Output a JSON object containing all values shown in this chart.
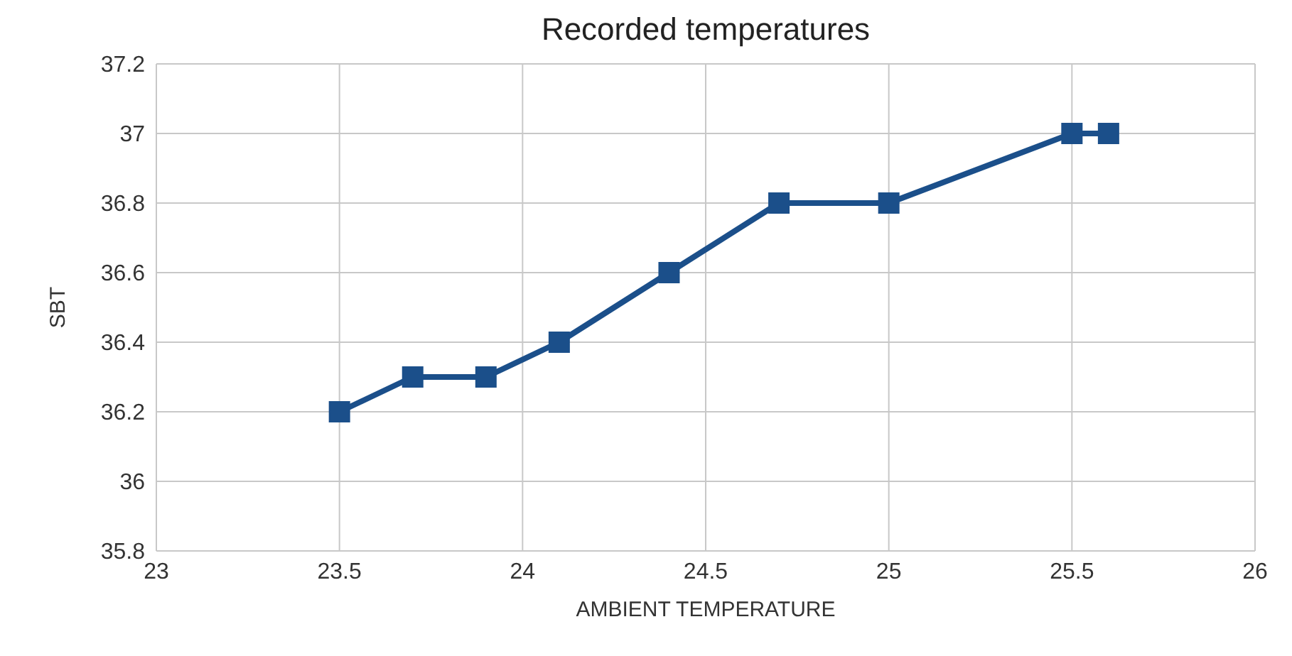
{
  "chart_data": {
    "type": "line",
    "title": "Recorded temperatures",
    "xlabel": "AMBIENT TEMPERATURE",
    "ylabel": "SBT",
    "x": [
      23.5,
      23.7,
      23.9,
      24.1,
      24.4,
      24.7,
      25,
      25.5,
      25.6
    ],
    "series": [
      {
        "color": "#1b4f8a",
        "values": [
          36.2,
          36.3,
          36.3,
          36.4,
          36.6,
          36.8,
          36.8,
          37,
          37
        ]
      }
    ],
    "xlim": [
      23,
      26
    ],
    "xticks": [
      23,
      23.5,
      24,
      24.5,
      25,
      25.5,
      26
    ],
    "ylim": [
      35.8,
      37.2
    ],
    "yticks": [
      35.8,
      36,
      36.2,
      36.4,
      36.6,
      36.8,
      37,
      37.2
    ],
    "grid": true,
    "legend": false,
    "marker": "square",
    "line_style": "solid"
  }
}
